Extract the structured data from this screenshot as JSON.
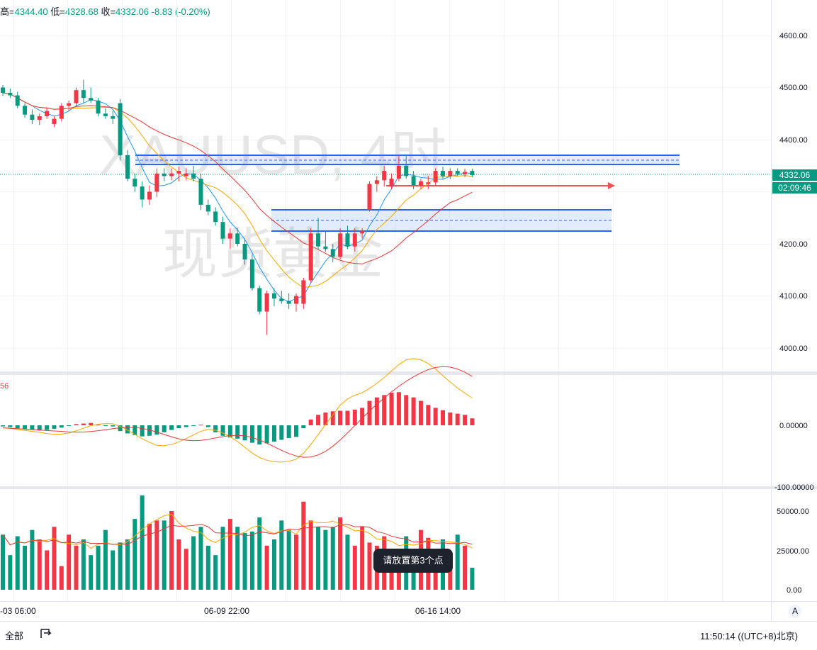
{
  "ohlc": {
    "high_label": "高=",
    "high": "4344.40",
    "low_label": "低=",
    "low": "4328.68",
    "close_label": "收=",
    "close": "4332.06",
    "change": "-8.83 (-0.20%)"
  },
  "watermark": {
    "line1": "XAUUSD, 4时",
    "line2": "现货黄金"
  },
  "price_axis": {
    "ticks": [
      "4600.00",
      "4500.00",
      "4400.00",
      "4200.00",
      "4100.00",
      "4000.00"
    ],
    "current_price": "4332.06",
    "countdown": "02:09:46"
  },
  "macd": {
    "label": "56",
    "ticks": [
      "0.00000",
      "-100.00000"
    ]
  },
  "volume": {
    "ticks": [
      "50000.00",
      "25000.00",
      "0.00"
    ]
  },
  "time_axis": {
    "labels": [
      "-03 06:00",
      "06-09 22:00",
      "06-16 14:00"
    ]
  },
  "tooltip": "请放置第3个点",
  "bottom_bar": {
    "range_all": "全部",
    "replay_icon": "replay-icon",
    "clock": "11:50:14 ((UTC+8)北京)",
    "auto_scale": "A"
  },
  "colors": {
    "up": "#f23645",
    "down": "#089981",
    "ma_fast": "#2196f3",
    "ma_mid": "#f7a600",
    "ma_slow": "#e53935",
    "zone": "#2962ff"
  },
  "chart_data": {
    "type": "candlestick",
    "symbol": "XAUUSD",
    "interval": "4时",
    "price_ylim": [
      3950,
      4650
    ],
    "candles": [
      [
        4500,
        4505,
        4484,
        4490
      ],
      [
        4490,
        4498,
        4480,
        4485
      ],
      [
        4485,
        4492,
        4460,
        4465
      ],
      [
        4465,
        4470,
        4442,
        4448
      ],
      [
        4448,
        4458,
        4430,
        4438
      ],
      [
        4438,
        4450,
        4428,
        4445
      ],
      [
        4445,
        4462,
        4440,
        4455
      ],
      [
        4430,
        4445,
        4424,
        4440
      ],
      [
        4440,
        4470,
        4435,
        4465
      ],
      [
        4465,
        4475,
        4455,
        4470
      ],
      [
        4470,
        4500,
        4465,
        4495
      ],
      [
        4495,
        4515,
        4470,
        4480
      ],
      [
        4480,
        4500,
        4470,
        4475
      ],
      [
        4475,
        4480,
        4445,
        4450
      ],
      [
        4450,
        4460,
        4440,
        4445
      ],
      [
        4445,
        4455,
        4430,
        4440
      ],
      [
        4470,
        4478,
        4360,
        4370
      ],
      [
        4370,
        4380,
        4320,
        4325
      ],
      [
        4325,
        4335,
        4300,
        4310
      ],
      [
        4310,
        4320,
        4270,
        4285
      ],
      [
        4285,
        4312,
        4275,
        4300
      ],
      [
        4300,
        4345,
        4290,
        4335
      ],
      [
        4335,
        4345,
        4320,
        4330
      ],
      [
        4330,
        4345,
        4322,
        4335
      ],
      [
        4335,
        4348,
        4320,
        4340
      ],
      [
        4330,
        4345,
        4322,
        4335
      ],
      [
        4335,
        4350,
        4320,
        4325
      ],
      [
        4325,
        4335,
        4265,
        4275
      ],
      [
        4275,
        4285,
        4255,
        4262
      ],
      [
        4262,
        4270,
        4235,
        4242
      ],
      [
        4242,
        4252,
        4200,
        4210
      ],
      [
        4210,
        4230,
        4190,
        4220
      ],
      [
        4220,
        4230,
        4195,
        4200
      ],
      [
        4200,
        4210,
        4160,
        4170
      ],
      [
        4170,
        4180,
        4110,
        4115
      ],
      [
        4115,
        4120,
        4065,
        4070
      ],
      [
        4070,
        4110,
        4025,
        4105
      ],
      [
        4105,
        4115,
        4080,
        4095
      ],
      [
        4095,
        4110,
        4085,
        4090
      ],
      [
        4090,
        4105,
        4075,
        4085
      ],
      [
        4085,
        4105,
        4070,
        4100
      ],
      [
        4085,
        4135,
        4075,
        4130
      ],
      [
        4130,
        4230,
        4125,
        4220
      ],
      [
        4220,
        4250,
        4190,
        4195
      ],
      [
        4195,
        4225,
        4185,
        4190
      ],
      [
        4190,
        4200,
        4165,
        4175
      ],
      [
        4175,
        4230,
        4170,
        4220
      ],
      [
        4220,
        4235,
        4190,
        4195
      ],
      [
        4195,
        4230,
        4185,
        4220
      ],
      [
        4220,
        4230,
        4210,
        4225
      ],
      [
        4265,
        4320,
        4262,
        4315
      ],
      [
        4315,
        4330,
        4300,
        4322
      ],
      [
        4322,
        4350,
        4310,
        4340
      ],
      [
        4310,
        4335,
        4305,
        4325
      ],
      [
        4325,
        4370,
        4320,
        4350
      ],
      [
        4350,
        4372,
        4325,
        4330
      ],
      [
        4330,
        4340,
        4305,
        4312
      ],
      [
        4312,
        4325,
        4305,
        4320
      ],
      [
        4315,
        4330,
        4305,
        4318
      ],
      [
        4318,
        4345,
        4312,
        4340
      ],
      [
        4340,
        4348,
        4325,
        4330
      ],
      [
        4330,
        4345,
        4325,
        4340
      ],
      [
        4340,
        4345,
        4330,
        4334
      ],
      [
        4334,
        4344,
        4328,
        4338
      ],
      [
        4340,
        4344,
        4328,
        4332
      ]
    ],
    "macd_histogram": [
      -2,
      -3,
      -5,
      -6,
      -8,
      -9,
      -8,
      -6,
      -4,
      -1,
      2,
      3,
      4,
      1,
      -1,
      -2,
      -10,
      -14,
      -17,
      -19,
      -18,
      -16,
      -12,
      -8,
      -5,
      -3,
      -1,
      1,
      -3,
      -12,
      -18,
      -21,
      -23,
      -26,
      -30,
      -33,
      -31,
      -28,
      -25,
      -22,
      -20,
      -5,
      10,
      18,
      22,
      24,
      25,
      25,
      27,
      30,
      42,
      48,
      52,
      56,
      57,
      52,
      48,
      42,
      35,
      30,
      26,
      22,
      20,
      18,
      12
    ],
    "macd_ylim": [
      -120,
      80
    ],
    "volumes": [
      35000,
      22000,
      34000,
      28000,
      38000,
      32000,
      25000,
      40000,
      15000,
      35000,
      28000,
      32000,
      22000,
      28000,
      38000,
      25000,
      30000,
      32000,
      45000,
      60000,
      42000,
      44000,
      44000,
      50000,
      32000,
      26000,
      34000,
      40000,
      28000,
      22000,
      40000,
      45000,
      40000,
      36000,
      37000,
      46000,
      28000,
      32000,
      44000,
      38000,
      35000,
      56000,
      44000,
      40000,
      38000,
      40000,
      46000,
      35000,
      28000,
      40000,
      30000,
      28000,
      34000,
      22000,
      26000,
      34000,
      26000,
      38000,
      33000,
      25000,
      32000,
      24000,
      35000,
      28000,
      14000
    ],
    "volume_ylim": [
      0,
      60000
    ]
  }
}
